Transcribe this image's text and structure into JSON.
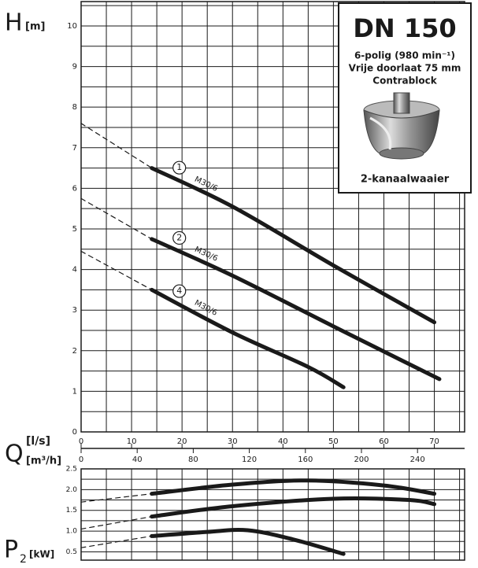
{
  "chart_data": [
    {
      "type": "line",
      "ylabel": "H",
      "yunit": "[m]",
      "xlabel": "Q",
      "xunit": "[l/s]",
      "x2unit": "[m³/h]",
      "xlim": [
        0,
        76
      ],
      "ylim": [
        0,
        10.6
      ],
      "xticks": [
        0,
        10,
        20,
        30,
        40,
        50,
        60,
        70
      ],
      "xminor": [
        5,
        15,
        25,
        35,
        45,
        55,
        65,
        75
      ],
      "x2lim": [
        0,
        273.6
      ],
      "x2ticks": [
        0,
        40,
        80,
        120,
        160,
        200,
        240
      ],
      "yticks": [
        0,
        1,
        2,
        3,
        4,
        5,
        6,
        7,
        8,
        9,
        10
      ],
      "yminor": [
        0.5,
        1.5,
        2.5,
        3.5,
        4.5,
        5.5,
        6.5,
        7.5,
        8.5,
        9.5,
        10.5
      ],
      "grid": true,
      "color": "#1a1a1a",
      "series": [
        {
          "name": "1",
          "motor": "M30/6",
          "x": [
            14,
            30,
            50,
            70
          ],
          "values": [
            6.5,
            5.55,
            4.1,
            2.7
          ]
        },
        {
          "x": [
            0,
            14
          ],
          "values": [
            7.6,
            6.5
          ],
          "dashed": true
        },
        {
          "name": "2",
          "motor": "M30/6",
          "x": [
            14,
            30,
            50,
            71
          ],
          "values": [
            4.75,
            3.85,
            2.6,
            1.3
          ]
        },
        {
          "x": [
            0,
            14
          ],
          "values": [
            5.75,
            4.75
          ],
          "dashed": true
        },
        {
          "name": "4",
          "motor": "M30/6",
          "x": [
            14,
            30,
            45,
            52
          ],
          "values": [
            3.5,
            2.45,
            1.6,
            1.1
          ]
        },
        {
          "x": [
            0,
            14
          ],
          "values": [
            4.45,
            3.5
          ],
          "dashed": true
        }
      ],
      "infobox": {
        "title": "DN 150",
        "line1": "6-polig (980 min⁻¹)",
        "line2": "Vrije doorlaat 75 mm",
        "line3": "Contrablock",
        "caption": "2-kanaalwaaier"
      }
    },
    {
      "type": "line",
      "ylabel": "P",
      "ylabel_sub": "2",
      "yunit": "[kW]",
      "xlim": [
        0,
        76
      ],
      "ylim": [
        0.3,
        2.5
      ],
      "xminor": [
        5,
        10,
        15,
        20,
        25,
        30,
        35,
        40,
        45,
        50,
        55,
        60,
        65,
        70,
        75
      ],
      "yticks": [
        0.5,
        {
          "value": 1,
          "label": "1.0"
        },
        1.5,
        {
          "value": 2,
          "label": "2.0"
        },
        2.5
      ],
      "yminor": [
        0.75,
        1.25,
        1.75,
        2.25
      ],
      "grid": true,
      "color": "#1a1a1a",
      "series": [
        {
          "x": [
            14,
            30,
            45,
            60,
            70
          ],
          "values": [
            1.9,
            2.12,
            2.22,
            2.1,
            1.9
          ]
        },
        {
          "x": [
            0,
            14
          ],
          "values": [
            1.7,
            1.9
          ],
          "dashed": true
        },
        {
          "x": [
            14,
            30,
            50,
            65,
            70
          ],
          "values": [
            1.35,
            1.6,
            1.78,
            1.75,
            1.65
          ]
        },
        {
          "x": [
            0,
            14
          ],
          "values": [
            1.05,
            1.35
          ],
          "dashed": true
        },
        {
          "x": [
            14,
            25,
            33,
            42,
            52
          ],
          "values": [
            0.88,
            0.98,
            1.02,
            0.8,
            0.45
          ]
        },
        {
          "x": [
            0,
            14
          ],
          "values": [
            0.6,
            0.88
          ],
          "dashed": true
        }
      ]
    }
  ]
}
